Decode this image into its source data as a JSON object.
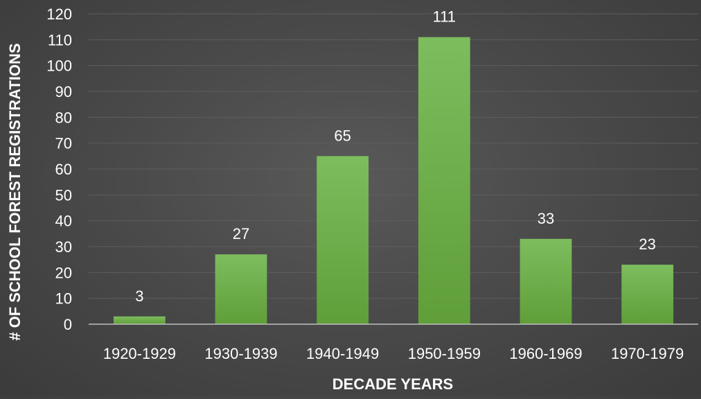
{
  "chart_data": {
    "type": "bar",
    "title": "",
    "xlabel": "DECADE YEARS",
    "ylabel": "# OF SCHOOL FOREST REGISTRATIONS",
    "categories": [
      "1920-1929",
      "1930-1939",
      "1940-1949",
      "1950-1959",
      "1960-1969",
      "1970-1979"
    ],
    "values": [
      3,
      27,
      65,
      111,
      33,
      23
    ],
    "ylim": [
      0,
      120
    ],
    "yticks": [
      0,
      10,
      20,
      30,
      40,
      50,
      60,
      70,
      80,
      90,
      100,
      110,
      120
    ],
    "grid": true,
    "legend": "none",
    "data_labels": true,
    "colors": {
      "background": "#4a4a4a",
      "bar_top": "#7dbd5e",
      "bar_bottom": "#5f9e38",
      "text": "#ffffff",
      "gridline": "#5e5e5e",
      "axis_line": "#bfbfbf"
    }
  }
}
